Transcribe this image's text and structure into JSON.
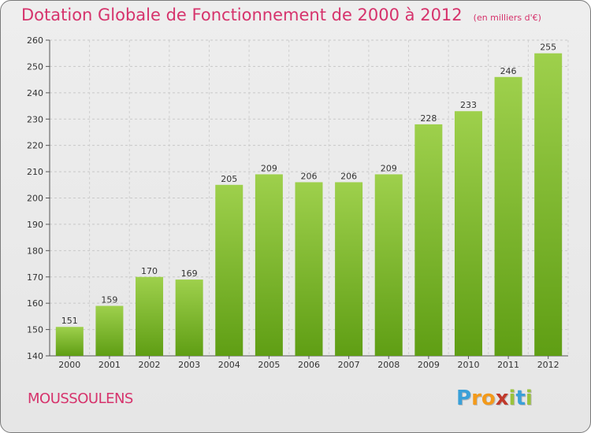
{
  "header": {
    "title": "Dotation Globale de Fonctionnement de 2000 à 2012",
    "subtitle": "(en milliers d'€)"
  },
  "footer": {
    "commune": "MOUSSOULENS",
    "logo_letters": [
      "P",
      "r",
      "o",
      "x",
      "i",
      "t",
      "i"
    ],
    "logo_colors": [
      "#3aa0d8",
      "#f39a1b",
      "#f39a1b",
      "#c0392b",
      "#9ac23c",
      "#3aa0d8",
      "#9ac23c"
    ]
  },
  "colors": {
    "bar_top": "#9ed04c",
    "bar_bottom": "#5f9e14",
    "accent": "#d6336c"
  },
  "chart_data": {
    "type": "bar",
    "title": "Dotation Globale de Fonctionnement de 2000 à 2012",
    "subtitle": "(en milliers d'€)",
    "xlabel": "",
    "ylabel": "",
    "categories": [
      "2000",
      "2001",
      "2002",
      "2003",
      "2004",
      "2005",
      "2006",
      "2007",
      "2008",
      "2009",
      "2010",
      "2011",
      "2012"
    ],
    "values": [
      151,
      159,
      170,
      169,
      205,
      209,
      206,
      206,
      209,
      228,
      233,
      246,
      255
    ],
    "ylim": [
      140,
      260
    ],
    "yticks": [
      140,
      150,
      160,
      170,
      180,
      190,
      200,
      210,
      220,
      230,
      240,
      250,
      260
    ],
    "grid": true,
    "data_labels": true
  }
}
